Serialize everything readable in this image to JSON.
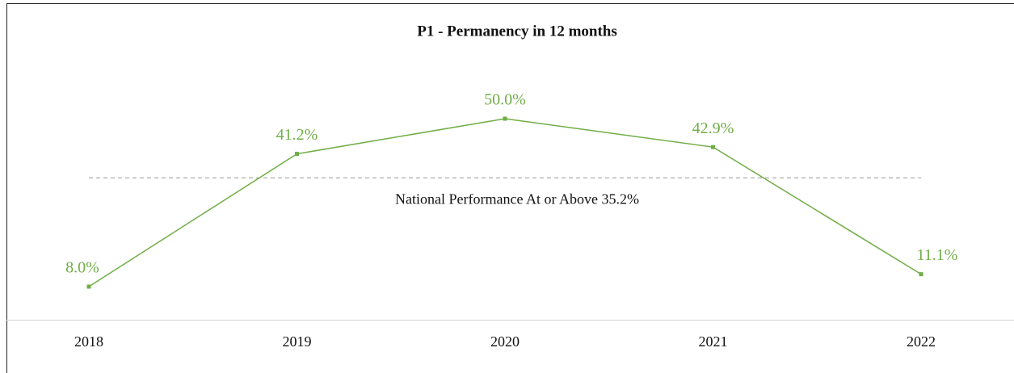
{
  "chart_data": {
    "type": "line",
    "title": "P1 - Permanency in 12 months",
    "categories": [
      "2018",
      "2019",
      "2020",
      "2021",
      "2022"
    ],
    "series": [
      {
        "name": "P1",
        "color": "#70ad47",
        "values": [
          8.0,
          41.2,
          50.0,
          42.9,
          11.1
        ],
        "value_labels": [
          "8.0%",
          "41.2%",
          "50.0%",
          "42.9%",
          "11.1%"
        ]
      }
    ],
    "ylim": [
      0,
      60
    ],
    "reference": {
      "value": 35.2,
      "label": "National Performance At or Above 35.2%",
      "color": "#999999"
    }
  }
}
